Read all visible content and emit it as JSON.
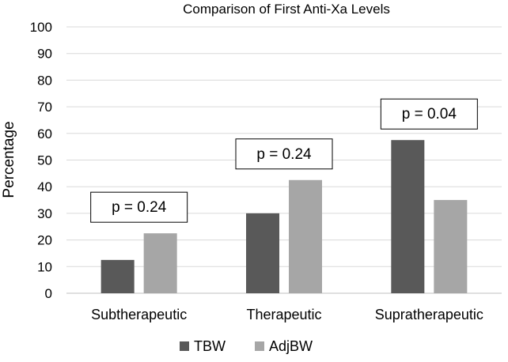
{
  "chart_data": {
    "type": "bar",
    "title": "Comparison of First Anti-Xa Levels",
    "xlabel": "",
    "ylabel": "Percentage",
    "categories": [
      "Subtherapeutic",
      "Therapeutic",
      "Supratherapeutic"
    ],
    "series": [
      {
        "name": "TBW",
        "values": [
          12.5,
          30,
          57.5
        ],
        "color": "#595959"
      },
      {
        "name": "AdjBW",
        "values": [
          22.5,
          42.5,
          35
        ],
        "color": "#a6a6a6"
      }
    ],
    "ylim": [
      0,
      100
    ],
    "yticks": [
      0,
      10,
      20,
      30,
      40,
      50,
      60,
      70,
      80,
      90,
      100
    ],
    "grid": true,
    "legend_position": "bottom",
    "annotations": [
      "p = 0.24",
      "p = 0.24",
      "p = 0.04"
    ]
  }
}
